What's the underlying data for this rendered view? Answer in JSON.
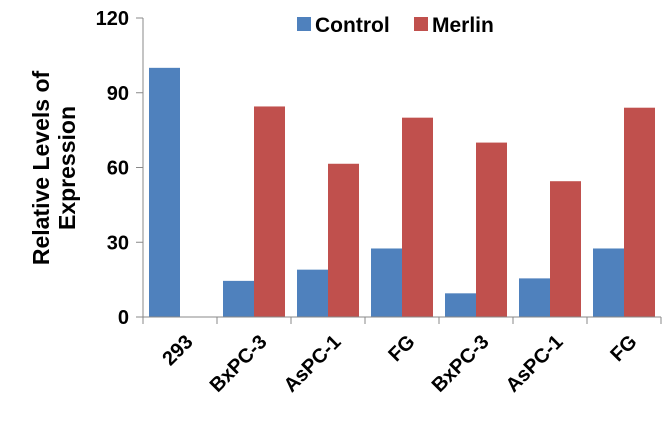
{
  "chart_data": {
    "type": "bar",
    "categories": [
      "293",
      "BxPC-3",
      "AsPC-1",
      "FG",
      "BxPC-3",
      "AsPC-1",
      "FG"
    ],
    "series": [
      {
        "name": "Control",
        "color": "#4f81bd",
        "values": [
          100,
          14.5,
          19,
          27.5,
          9.5,
          15.5,
          27.5
        ]
      },
      {
        "name": "Merlin",
        "color": "#c0504d",
        "values": [
          0,
          84.5,
          61.5,
          80,
          70,
          54.5,
          84
        ]
      }
    ],
    "ylabel_lines": [
      "Relative Levels of",
      "Expression"
    ],
    "ylim": [
      0,
      120
    ],
    "yticks": [
      "0",
      "30",
      "60",
      "90",
      "120"
    ],
    "legend_position": "top-right",
    "grid": false
  }
}
